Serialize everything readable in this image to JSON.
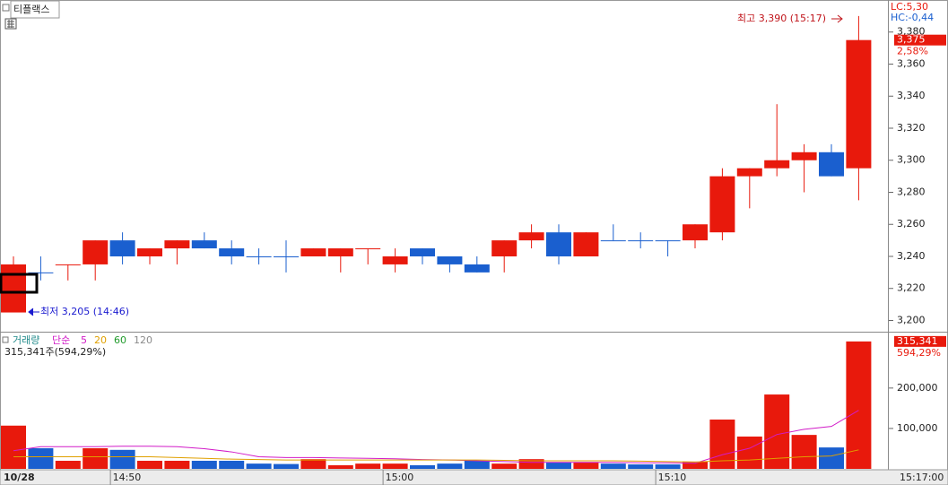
{
  "chart_data": [
    {
      "type": "candlestick",
      "title": "티플랙스",
      "categories": [
        "10/28",
        null,
        null,
        null,
        "14:50",
        null,
        null,
        null,
        null,
        null,
        null,
        null,
        null,
        null,
        "15:00",
        null,
        null,
        null,
        null,
        null,
        null,
        null,
        null,
        null,
        "15:10",
        null,
        null,
        null,
        null,
        null,
        null,
        null
      ],
      "open": [
        3205,
        3230,
        3235,
        3235,
        3250,
        3240,
        3245,
        3250,
        3245,
        3240,
        3240,
        3240,
        3240,
        3245,
        3235,
        3245,
        3240,
        3235,
        3240,
        3250,
        3255,
        3240,
        3250,
        3250,
        3250,
        3250,
        3255,
        3290,
        3295,
        3300,
        3305,
        3295
      ],
      "high": [
        3240,
        3240,
        3235,
        3250,
        3255,
        3245,
        3250,
        3255,
        3250,
        3245,
        3250,
        3245,
        3245,
        3245,
        3245,
        3245,
        3240,
        3240,
        3250,
        3260,
        3260,
        3255,
        3260,
        3255,
        3250,
        3260,
        3295,
        3295,
        3335,
        3310,
        3310,
        3390
      ],
      "low": [
        3205,
        3225,
        3225,
        3225,
        3235,
        3235,
        3235,
        3245,
        3235,
        3235,
        3230,
        3240,
        3230,
        3235,
        3230,
        3235,
        3230,
        3230,
        3230,
        3245,
        3235,
        3240,
        3250,
        3245,
        3240,
        3245,
        3250,
        3270,
        3290,
        3280,
        3290,
        3275
      ],
      "close": [
        3235,
        3230,
        3235,
        3250,
        3240,
        3245,
        3250,
        3245,
        3240,
        3240,
        3240,
        3245,
        3245,
        3245,
        3240,
        3240,
        3235,
        3230,
        3250,
        3255,
        3240,
        3255,
        3250,
        3250,
        3250,
        3260,
        3290,
        3295,
        3300,
        3305,
        3290,
        3375
      ],
      "direction": [
        "up",
        "down",
        "up",
        "up",
        "down",
        "up",
        "up",
        "down",
        "down",
        "down",
        "down",
        "up",
        "up",
        "up",
        "up",
        "down",
        "down",
        "down",
        "up",
        "up",
        "down",
        "up",
        "down",
        "down",
        "down",
        "up",
        "up",
        "up",
        "up",
        "up",
        "down",
        "up"
      ],
      "up_color": "#e8190c",
      "down_color": "#1a5fcf",
      "ylim": [
        3193,
        3400
      ],
      "yticks": [
        {
          "value": 3200,
          "label": "3,200"
        },
        {
          "value": 3220,
          "label": "3,220"
        },
        {
          "value": 3240,
          "label": "3,240"
        },
        {
          "value": 3260,
          "label": "3,260"
        },
        {
          "value": 3280,
          "label": "3,280"
        },
        {
          "value": 3300,
          "label": "3,300"
        },
        {
          "value": 3320,
          "label": "3,320"
        },
        {
          "value": 3340,
          "label": "3,340"
        },
        {
          "value": 3360,
          "label": "3,360"
        },
        {
          "value": 3380,
          "label": "3,380"
        }
      ],
      "last_price": {
        "value": 3375,
        "label": "3,375"
      },
      "change_label": "2,58%",
      "lc_label": "LC:5,30",
      "hc_label": "HC:-0,44",
      "high_annotation": "최고 3,390 (15:17)",
      "low_annotation": "최저 3,205 (14:46)",
      "current_time_label": "15:17:00"
    },
    {
      "type": "volume",
      "title": "거래량",
      "ma_type": "단순",
      "values": [
        107000,
        51000,
        20000,
        51000,
        47000,
        20000,
        20000,
        20000,
        20000,
        13000,
        12000,
        24000,
        9000,
        13000,
        13000,
        9000,
        13000,
        20000,
        13000,
        24000,
        16000,
        16000,
        13000,
        11000,
        11000,
        18000,
        122000,
        80000,
        184000,
        84000,
        53000,
        315341
      ],
      "summary_label": "315,341주(594,29%)",
      "last_value_label": "315,341",
      "last_ratio_label": "594,29%",
      "series": [
        {
          "name": "5",
          "color": "#d21cc8",
          "values": [
            45000,
            55000,
            55000,
            55000,
            56000,
            56000,
            55000,
            50000,
            42000,
            30000,
            28000,
            28000,
            27000,
            26000,
            25000,
            23000,
            22000,
            20000,
            18000,
            16000,
            16000,
            16000,
            16000,
            15000,
            15000,
            14000,
            35000,
            51000,
            85000,
            98000,
            105000,
            145000
          ]
        },
        {
          "name": "20",
          "color": "#e0a000",
          "values": [
            30000,
            30000,
            30000,
            30000,
            30000,
            30000,
            28000,
            26000,
            24000,
            23000,
            22000,
            22000,
            22000,
            22000,
            22000,
            22000,
            22000,
            22000,
            21000,
            20000,
            20000,
            20000,
            20000,
            19000,
            18000,
            17000,
            20000,
            22000,
            26000,
            30000,
            32000,
            47000
          ]
        },
        {
          "name": "60",
          "color": "#1f9a2a"
        },
        {
          "name": "120",
          "color": "#8a8a8a"
        }
      ],
      "ylim": [
        0,
        335000
      ],
      "yticks": [
        {
          "value": 100000,
          "label": "100,000"
        },
        {
          "value": 200000,
          "label": "200,000"
        }
      ]
    }
  ]
}
